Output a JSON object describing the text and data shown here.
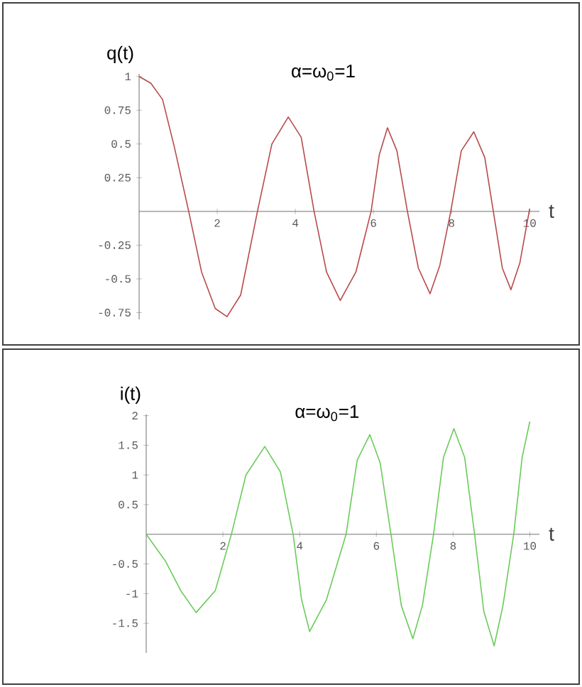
{
  "chart_data": [
    {
      "type": "line",
      "title": "α=ω$_{0}$=1",
      "xlabel": "t",
      "ylabel": "q(t)",
      "x": [
        0,
        0.3,
        0.6,
        0.9,
        1.27,
        1.6,
        1.95,
        2.25,
        2.6,
        3.03,
        3.4,
        3.82,
        4.15,
        4.48,
        4.8,
        5.15,
        5.55,
        5.94,
        6.15,
        6.36,
        6.6,
        6.87,
        7.15,
        7.45,
        7.7,
        7.98,
        8.25,
        8.57,
        8.85,
        9.07,
        9.3,
        9.52,
        9.75,
        10
      ],
      "series": [
        {
          "color": "#b84a4a",
          "values": [
            1,
            0.95,
            0.83,
            0.48,
            0,
            -0.45,
            -0.72,
            -0.78,
            -0.62,
            0,
            0.5,
            0.7,
            0.55,
            0,
            -0.45,
            -0.66,
            -0.45,
            0,
            0.42,
            0.62,
            0.45,
            0,
            -0.42,
            -0.61,
            -0.4,
            0,
            0.45,
            0.59,
            0.4,
            0,
            -0.42,
            -0.58,
            -0.38,
            0.02
          ]
        }
      ],
      "xlim": [
        0,
        10.25
      ],
      "ylim": [
        -0.8,
        1.02
      ],
      "xticks": [
        2,
        4,
        6,
        8,
        10
      ],
      "yticks": [
        -0.75,
        -0.5,
        -0.25,
        0.25,
        0.5,
        0.75,
        1
      ]
    },
    {
      "type": "line",
      "title": "α=ω$_{0}$=1",
      "xlabel": "t",
      "ylabel": "i(t)",
      "x": [
        0,
        0.5,
        0.9,
        1.3,
        1.8,
        2.22,
        2.6,
        3.09,
        3.5,
        3.83,
        4.05,
        4.26,
        4.7,
        5.21,
        5.5,
        5.83,
        6.1,
        6.38,
        6.65,
        6.95,
        7.2,
        7.49,
        7.75,
        8.02,
        8.3,
        8.56,
        8.8,
        9.07,
        9.3,
        9.58,
        9.8,
        10
      ],
      "series": [
        {
          "color": "#6acb5a",
          "values": [
            0,
            -0.45,
            -0.95,
            -1.32,
            -0.95,
            0,
            1.0,
            1.48,
            1.05,
            0,
            -1.1,
            -1.64,
            -1.1,
            0,
            1.25,
            1.68,
            1.2,
            0,
            -1.2,
            -1.76,
            -1.2,
            0,
            1.3,
            1.78,
            1.3,
            0,
            -1.3,
            -1.88,
            -1.2,
            0,
            1.3,
            1.9
          ]
        }
      ],
      "xlim": [
        0,
        10.25
      ],
      "ylim": [
        -2,
        2.02
      ],
      "xticks": [
        2,
        4,
        6,
        8,
        10
      ],
      "yticks": [
        -1.5,
        -1,
        -0.5,
        0.5,
        1,
        1.5,
        2
      ]
    }
  ]
}
